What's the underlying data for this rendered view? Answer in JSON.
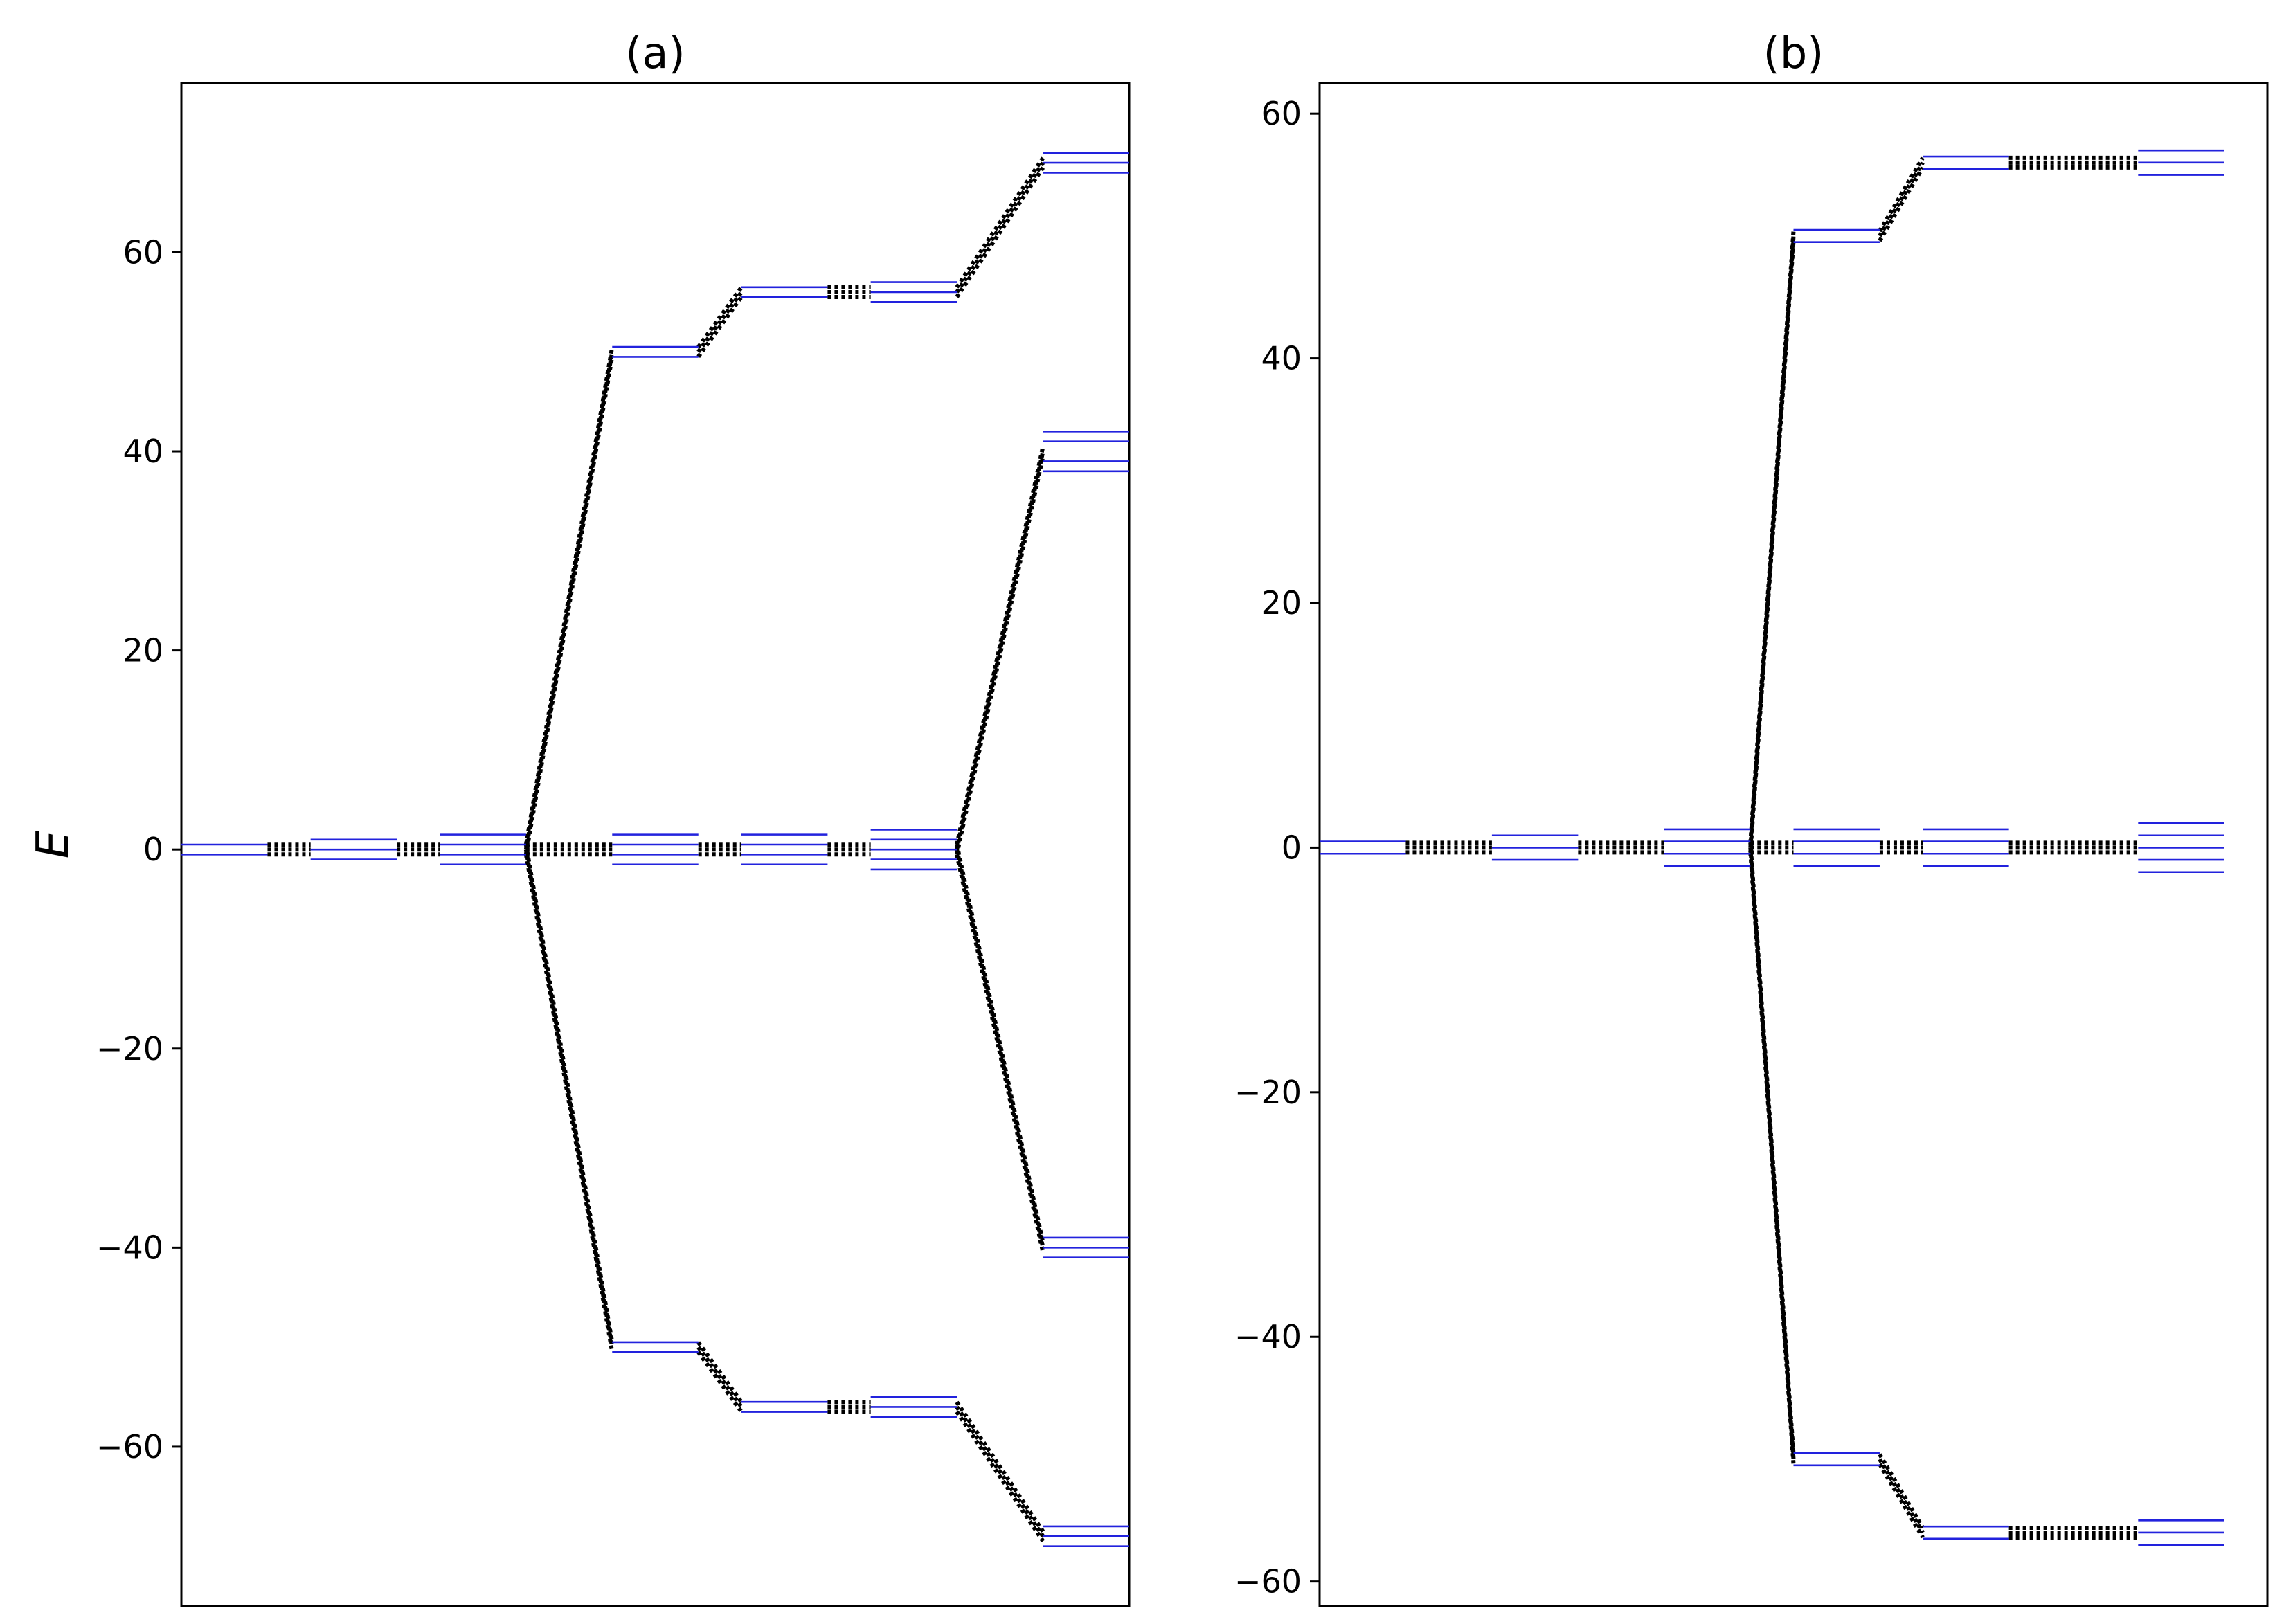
{
  "figure": {
    "ylabel": "E",
    "colors": {
      "level": "#2222dd",
      "connector": "#000000"
    }
  },
  "chart_data": [
    {
      "type": "line",
      "title": "(a)",
      "ylabel": "E",
      "ylim": [
        -76,
        77
      ],
      "yticks": [
        -60,
        -40,
        -20,
        0,
        20,
        40,
        60
      ],
      "xticks": [],
      "grid": false,
      "xlim": [
        0.5,
        11.5
      ],
      "columns": [
        {
          "x": 1,
          "levels": [
            0.5,
            -0.5
          ]
        },
        {
          "x": 2.5,
          "levels": [
            1,
            0,
            -1
          ]
        },
        {
          "x": 4,
          "levels": [
            1.5,
            0.5,
            -0.5,
            -1.5
          ]
        },
        {
          "x": 6,
          "levels": [
            1.5,
            0.5,
            -0.5,
            -1.5,
            50.5,
            49.5,
            -49.5,
            -50.5
          ]
        },
        {
          "x": 7.5,
          "levels": [
            1.5,
            0.5,
            -0.5,
            -1.5,
            56.5,
            55.5,
            -55.5,
            -56.5
          ]
        },
        {
          "x": 9,
          "levels": [
            2,
            1,
            0,
            -1,
            -2,
            57,
            56,
            55,
            -55,
            -56,
            -57
          ]
        },
        {
          "x": 11,
          "levels": [
            42,
            41,
            39,
            38,
            70,
            69,
            68,
            -39,
            -40,
            -41,
            -68,
            -69,
            -70
          ]
        }
      ],
      "connections": [
        {
          "from": [
            1.5,
            0
          ],
          "to": [
            2,
            0
          ]
        },
        {
          "from": [
            3,
            0
          ],
          "to": [
            3.5,
            0
          ]
        },
        {
          "from": [
            4.5,
            0
          ],
          "to": [
            5.5,
            0
          ]
        },
        {
          "from": [
            4.5,
            0
          ],
          "to": [
            5.5,
            50
          ]
        },
        {
          "from": [
            4.5,
            0
          ],
          "to": [
            5.5,
            -50
          ]
        },
        {
          "from": [
            6.5,
            0
          ],
          "to": [
            7,
            0
          ]
        },
        {
          "from": [
            6.5,
            50
          ],
          "to": [
            7,
            56
          ]
        },
        {
          "from": [
            6.5,
            -50
          ],
          "to": [
            7,
            -56
          ]
        },
        {
          "from": [
            8,
            0
          ],
          "to": [
            8.5,
            0
          ]
        },
        {
          "from": [
            8,
            56
          ],
          "to": [
            8.5,
            56
          ]
        },
        {
          "from": [
            8,
            -56
          ],
          "to": [
            8.5,
            -56
          ]
        },
        {
          "from": [
            9.5,
            0
          ],
          "to": [
            10.5,
            40
          ]
        },
        {
          "from": [
            9.5,
            0
          ],
          "to": [
            10.5,
            -40
          ]
        },
        {
          "from": [
            9.5,
            56
          ],
          "to": [
            10.5,
            69
          ]
        },
        {
          "from": [
            9.5,
            -56
          ],
          "to": [
            10.5,
            -69
          ]
        }
      ]
    },
    {
      "type": "line",
      "title": "(b)",
      "ylabel": "",
      "ylim": [
        -62,
        62.5
      ],
      "yticks": [
        -60,
        -40,
        -20,
        0,
        20,
        40,
        60
      ],
      "xticks": [],
      "grid": false,
      "xlim": [
        0.5,
        11.5
      ],
      "columns": [
        {
          "x": 1,
          "levels": [
            0.5,
            -0.5
          ]
        },
        {
          "x": 3,
          "levels": [
            1,
            0,
            -1
          ]
        },
        {
          "x": 5,
          "levels": [
            1.5,
            0.5,
            -0.5,
            -1.5
          ]
        },
        {
          "x": 6.5,
          "levels": [
            1.5,
            0.5,
            -0.5,
            -1.5,
            50.5,
            49.5,
            -49.5,
            -50.5
          ]
        },
        {
          "x": 8,
          "levels": [
            1.5,
            0.5,
            -0.5,
            -1.5,
            56.5,
            55.5,
            -55.5,
            -56.5
          ]
        },
        {
          "x": 10.5,
          "levels": [
            2,
            1,
            0,
            -1,
            -2,
            57,
            56,
            55,
            -55,
            -56,
            -57
          ]
        }
      ],
      "connections": [
        {
          "from": [
            1.5,
            0
          ],
          "to": [
            2.5,
            0
          ]
        },
        {
          "from": [
            3.5,
            0
          ],
          "to": [
            4.5,
            0
          ]
        },
        {
          "from": [
            5.5,
            0
          ],
          "to": [
            6,
            0
          ]
        },
        {
          "from": [
            5.5,
            0
          ],
          "to": [
            6,
            50
          ]
        },
        {
          "from": [
            5.5,
            0
          ],
          "to": [
            6,
            -50
          ]
        },
        {
          "from": [
            7,
            0
          ],
          "to": [
            7.5,
            0
          ]
        },
        {
          "from": [
            7,
            50
          ],
          "to": [
            7.5,
            56
          ]
        },
        {
          "from": [
            7,
            -50
          ],
          "to": [
            7.5,
            -56
          ]
        },
        {
          "from": [
            8.5,
            0
          ],
          "to": [
            10,
            0
          ]
        },
        {
          "from": [
            8.5,
            56
          ],
          "to": [
            10,
            56
          ]
        },
        {
          "from": [
            8.5,
            -56
          ],
          "to": [
            10,
            -56
          ]
        }
      ]
    }
  ]
}
